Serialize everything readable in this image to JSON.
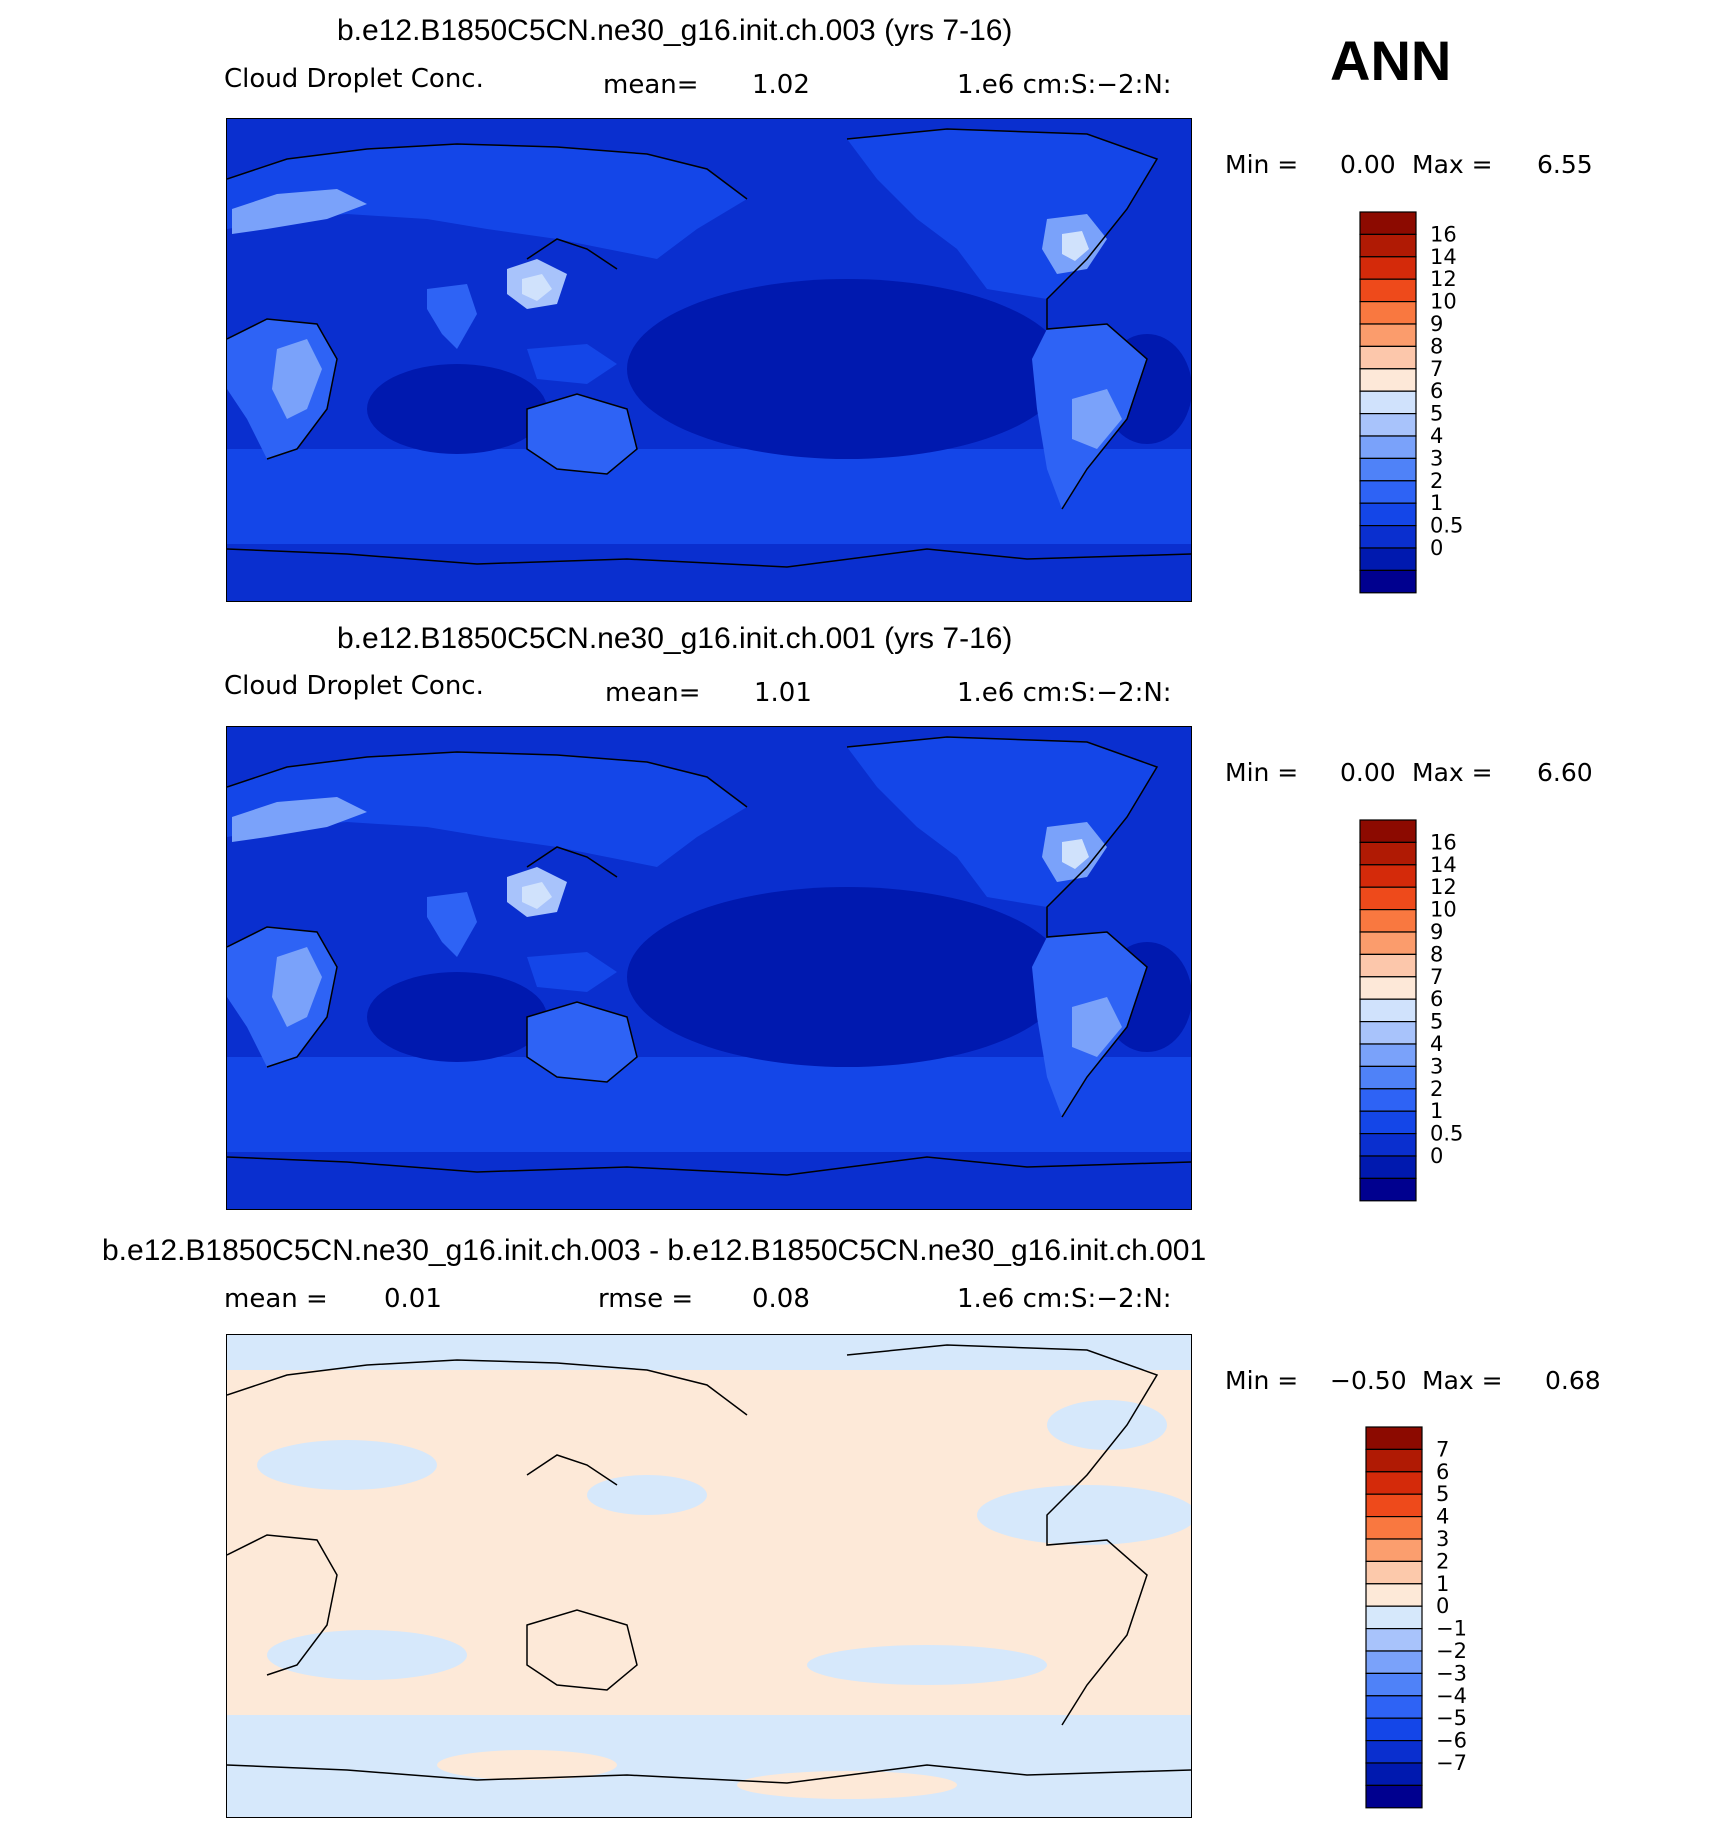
{
  "season": "ANN",
  "colors": {
    "abs_scale": [
      "#00008f",
      "#0019af",
      "#0a2fcf",
      "#1446e8",
      "#2e63f5",
      "#4f82f8",
      "#7aa2fa",
      "#a8c3fb",
      "#d0e2fc",
      "#fde8d8",
      "#fcc7ab",
      "#fb9c6c",
      "#f97840",
      "#ee4a1b",
      "#d42a0a",
      "#b01a04",
      "#8c0a00"
    ],
    "diff_scale": [
      "#00008f",
      "#0019af",
      "#0a2fcf",
      "#1446e8",
      "#2e63f5",
      "#4f82f8",
      "#7aa2fa",
      "#a8c3fb",
      "#d6e8fb",
      "#fde9d8",
      "#fcc9ab",
      "#fb9e6e",
      "#f97840",
      "#ee4a1b",
      "#d42a0a",
      "#b01a04",
      "#8c0a00"
    ],
    "coast": "#000000"
  },
  "panels": [
    {
      "title": "b.e12.B1850C5CN.ne30_g16.init.ch.003 (yrs 7-16)",
      "left_label": "Cloud Droplet Conc.",
      "mean_label": "mean=",
      "mean_value": "1.02",
      "units": "1.e6 cm:S:−2:N:",
      "min_label": "Min =",
      "min_value": "0.00",
      "max_label": "Max =",
      "max_value": "6.55",
      "colorbar_ticks": [
        "16",
        "14",
        "12",
        "10",
        "9",
        "8",
        "7",
        "6",
        "5",
        "4",
        "3",
        "2",
        "1",
        "0.5",
        "0"
      ]
    },
    {
      "title": "b.e12.B1850C5CN.ne30_g16.init.ch.001 (yrs 7-16)",
      "left_label": "Cloud Droplet Conc.",
      "mean_label": "mean=",
      "mean_value": "1.01",
      "units": "1.e6 cm:S:−2:N:",
      "min_label": "Min =",
      "min_value": "0.00",
      "max_label": "Max =",
      "max_value": "6.60",
      "colorbar_ticks": [
        "16",
        "14",
        "12",
        "10",
        "9",
        "8",
        "7",
        "6",
        "5",
        "4",
        "3",
        "2",
        "1",
        "0.5",
        "0"
      ]
    },
    {
      "title": "b.e12.B1850C5CN.ne30_g16.init.ch.003 - b.e12.B1850C5CN.ne30_g16.init.ch.001",
      "left_label": "mean =",
      "left_value": "0.01",
      "mean_label": "rmse =",
      "mean_value": "0.08",
      "units": "1.e6 cm:S:−2:N:",
      "min_label": "Min =",
      "min_value": "−0.50",
      "max_label": "Max =",
      "max_value": "0.68",
      "colorbar_ticks": [
        "7",
        "6",
        "5",
        "4",
        "3",
        "2",
        "1",
        "0",
        "−1",
        "−2",
        "−3",
        "−4",
        "−5",
        "−6",
        "−7"
      ]
    }
  ]
}
